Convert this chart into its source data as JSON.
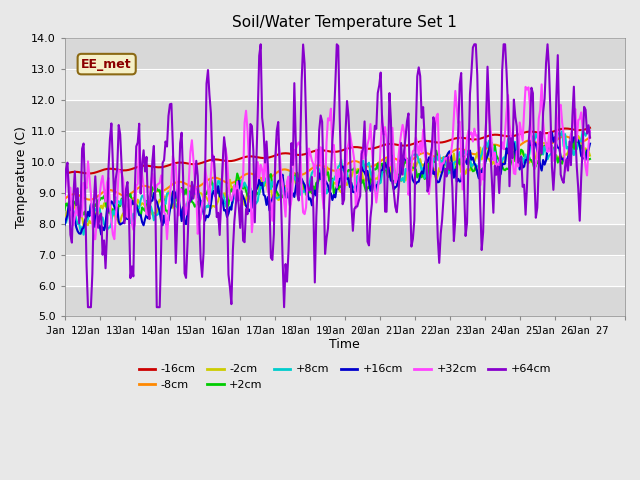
{
  "title": "Soil/Water Temperature Set 1",
  "xlabel": "Time",
  "ylabel": "Temperature (C)",
  "ylim": [
    5.0,
    14.0
  ],
  "yticks": [
    5.0,
    6.0,
    7.0,
    8.0,
    9.0,
    10.0,
    11.0,
    12.0,
    13.0,
    14.0
  ],
  "xtick_positions": [
    11,
    12,
    13,
    14,
    15,
    16,
    17,
    18,
    19,
    20,
    21,
    22,
    23,
    24,
    25,
    26,
    27
  ],
  "xtick_labels": [
    "Jan 12",
    "Jan 13",
    "Jan 14",
    "Jan 15",
    "Jan 16",
    "Jan 17",
    "Jan 18",
    "Jan 19",
    "Jan 20",
    "Jan 21",
    "Jan 22",
    "Jan 23",
    "Jan 24",
    "Jan 25",
    "Jan 26",
    "Jan 27",
    ""
  ],
  "bg_color": "#e8e8e8",
  "legend_label": "EE_met",
  "series": {
    "-16cm": {
      "color": "#cc0000",
      "lw": 1.5
    },
    "-8cm": {
      "color": "#ff8800",
      "lw": 1.5
    },
    "-2cm": {
      "color": "#cccc00",
      "lw": 1.5
    },
    "+2cm": {
      "color": "#00cc00",
      "lw": 1.5
    },
    "+8cm": {
      "color": "#00cccc",
      "lw": 1.5
    },
    "+16cm": {
      "color": "#0000cc",
      "lw": 1.5
    },
    "+32cm": {
      "color": "#ff44ff",
      "lw": 1.5
    },
    "+64cm": {
      "color": "#8800cc",
      "lw": 1.5
    }
  }
}
